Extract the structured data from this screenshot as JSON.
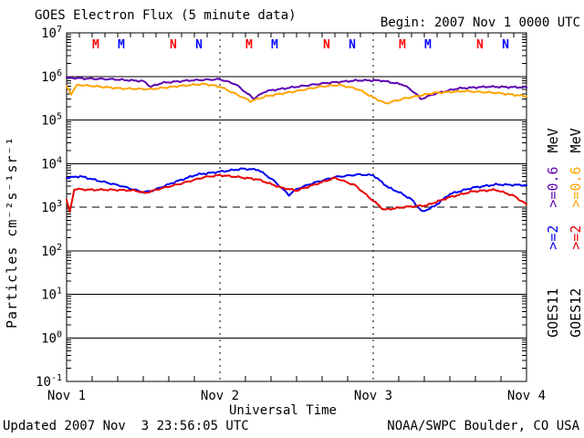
{
  "footer": {
    "updated": "Updated 2007 Nov  3 23:56:05 UTC",
    "credit": "NOAA/SWPC Boulder, CO USA"
  },
  "chart_data": {
    "type": "line",
    "title": "GOES Electron Flux (5 minute data)",
    "begin": "Begin: 2007 Nov 1 0000 UTC",
    "xlabel": "Universal Time",
    "ylabel": "Particles cm⁻²s⁻¹sr⁻¹",
    "x_axis": {
      "unit": "days since 2007 Nov 1 0000 UTC",
      "range_days": [
        0,
        3
      ],
      "tick_labels": [
        "Nov 1",
        "Nov 2",
        "Nov 3",
        "Nov 4"
      ]
    },
    "y_axis": {
      "scale": "log10",
      "exponent_range": [
        -1,
        7
      ],
      "tick_exponents": [
        7,
        6,
        5,
        4,
        3,
        2,
        1,
        0,
        -1
      ]
    },
    "grid": {
      "solid_decades": [
        6,
        5,
        4,
        2,
        1,
        0
      ],
      "dashed_threshold_value": 1000,
      "dotted_day_lines": [
        1,
        2
      ]
    },
    "series": [
      {
        "key": "g11-e06",
        "name": "GOES11 >=0.6 MeV",
        "satellite": "GOES11",
        "energy": ">=0.6 MeV",
        "color": "#5E00B0",
        "points": [
          [
            0.0,
            940000.0
          ],
          [
            0.1,
            900000.0
          ],
          [
            0.3,
            860000.0
          ],
          [
            0.5,
            780000.0
          ],
          [
            0.55,
            580000.0
          ],
          [
            0.62,
            710000.0
          ],
          [
            0.8,
            810000.0
          ],
          [
            1.0,
            860000.0
          ],
          [
            1.1,
            670000.0
          ],
          [
            1.18,
            400000.0
          ],
          [
            1.22,
            310000.0
          ],
          [
            1.3,
            460000.0
          ],
          [
            1.5,
            580000.0
          ],
          [
            1.7,
            710000.0
          ],
          [
            1.9,
            810000.0
          ],
          [
            2.05,
            810000.0
          ],
          [
            2.2,
            640000.0
          ],
          [
            2.28,
            400000.0
          ],
          [
            2.31,
            300000.0
          ],
          [
            2.4,
            400000.0
          ],
          [
            2.55,
            530000.0
          ],
          [
            2.75,
            580000.0
          ],
          [
            3.0,
            560000.0
          ]
        ]
      },
      {
        "key": "g12-e06",
        "name": "GOES12 >=0.6 MeV",
        "satellite": "GOES12",
        "energy": ">=0.6 MeV",
        "color": "#FFA500",
        "points": [
          [
            0.0,
            580000.0
          ],
          [
            0.03,
            400000.0
          ],
          [
            0.07,
            640000.0
          ],
          [
            0.15,
            610000.0
          ],
          [
            0.35,
            530000.0
          ],
          [
            0.55,
            510000.0
          ],
          [
            0.75,
            610000.0
          ],
          [
            0.9,
            670000.0
          ],
          [
            1.0,
            580000.0
          ],
          [
            1.1,
            400000.0
          ],
          [
            1.2,
            270000.0
          ],
          [
            1.3,
            350000.0
          ],
          [
            1.5,
            460000.0
          ],
          [
            1.65,
            580000.0
          ],
          [
            1.78,
            640000.0
          ],
          [
            1.9,
            510000.0
          ],
          [
            2.0,
            330000.0
          ],
          [
            2.08,
            240000.0
          ],
          [
            2.2,
            310000.0
          ],
          [
            2.4,
            420000.0
          ],
          [
            2.6,
            460000.0
          ],
          [
            2.8,
            420000.0
          ],
          [
            3.0,
            350000.0
          ]
        ]
      },
      {
        "key": "g11-e2",
        "name": "GOES11 >=2 MeV",
        "satellite": "GOES11",
        "energy": ">=2 MeV",
        "color": "#0000F0",
        "points": [
          [
            0.0,
            4700.0
          ],
          [
            0.09,
            5100.0
          ],
          [
            0.2,
            4100.0
          ],
          [
            0.35,
            3100.0
          ],
          [
            0.5,
            2200.0
          ],
          [
            0.56,
            2400.0
          ],
          [
            0.7,
            3700.0
          ],
          [
            0.85,
            5600.0
          ],
          [
            1.0,
            6500.0
          ],
          [
            1.15,
            7600.0
          ],
          [
            1.25,
            7200.0
          ],
          [
            1.35,
            4100.0
          ],
          [
            1.45,
            1900.0
          ],
          [
            1.5,
            2600.0
          ],
          [
            1.6,
            3500.0
          ],
          [
            1.75,
            4900.0
          ],
          [
            1.9,
            5600.0
          ],
          [
            2.0,
            5400.0
          ],
          [
            2.1,
            2800.0
          ],
          [
            2.18,
            2100.0
          ],
          [
            2.25,
            1500.0
          ],
          [
            2.32,
            780.0
          ],
          [
            2.4,
            1050.0
          ],
          [
            2.5,
            2000.0
          ],
          [
            2.65,
            2800.0
          ],
          [
            2.8,
            3300.0
          ],
          [
            3.0,
            3200.0
          ]
        ]
      },
      {
        "key": "g12-e2",
        "name": "GOES12 >=2 MeV",
        "satellite": "GOES12",
        "energy": ">=2 MeV",
        "color": "#E80000",
        "points": [
          [
            0.0,
            1500.0
          ],
          [
            0.02,
            750.0
          ],
          [
            0.05,
            2600.0
          ],
          [
            0.15,
            2500.0
          ],
          [
            0.3,
            2500.0
          ],
          [
            0.45,
            2400.0
          ],
          [
            0.51,
            2100.0
          ],
          [
            0.6,
            2600.0
          ],
          [
            0.75,
            3500.0
          ],
          [
            0.9,
            4900.0
          ],
          [
            1.0,
            5400.0
          ],
          [
            1.12,
            4900.0
          ],
          [
            1.25,
            4300.0
          ],
          [
            1.4,
            2800.0
          ],
          [
            1.5,
            2400.0
          ],
          [
            1.62,
            3300.0
          ],
          [
            1.75,
            4700.0
          ],
          [
            1.88,
            3200.0
          ],
          [
            2.0,
            1400.0
          ],
          [
            2.07,
            870.0
          ],
          [
            2.2,
            1000.0
          ],
          [
            2.35,
            1100.0
          ],
          [
            2.5,
            1700.0
          ],
          [
            2.65,
            2300.0
          ],
          [
            2.8,
            2500.0
          ],
          [
            2.92,
            1800.0
          ],
          [
            3.0,
            1150.0
          ]
        ]
      }
    ],
    "event_markers": {
      "description": "satellite local midnight (M) / noon (N) markers along top of plot",
      "items": [
        {
          "t": 0.19,
          "label": "M",
          "color": "#FF0000"
        },
        {
          "t": 0.357,
          "label": "M",
          "color": "#0000FF"
        },
        {
          "t": 0.696,
          "label": "N",
          "color": "#FF0000"
        },
        {
          "t": 0.863,
          "label": "N",
          "color": "#0000FF"
        },
        {
          "t": 1.19,
          "label": "M",
          "color": "#FF0000"
        },
        {
          "t": 1.357,
          "label": "M",
          "color": "#0000FF"
        },
        {
          "t": 1.696,
          "label": "N",
          "color": "#FF0000"
        },
        {
          "t": 1.863,
          "label": "N",
          "color": "#0000FF"
        },
        {
          "t": 2.19,
          "label": "M",
          "color": "#FF0000"
        },
        {
          "t": 2.357,
          "label": "M",
          "color": "#0000FF"
        },
        {
          "t": 2.696,
          "label": "N",
          "color": "#FF0000"
        },
        {
          "t": 2.863,
          "label": "N",
          "color": "#0000FF"
        }
      ]
    },
    "legend": {
      "columns": [
        {
          "satellite": "GOES11",
          "ge2_label": ">=2",
          "ge2_color": "#0000F0",
          "ge06_label": ">=0.6",
          "ge06_color": "#5E00B0",
          "mev_label": "MeV"
        },
        {
          "satellite": "GOES12",
          "ge2_label": ">=2",
          "ge2_color": "#E80000",
          "ge06_label": ">=0.6",
          "ge06_color": "#FFA500",
          "mev_label": "MeV"
        }
      ]
    }
  }
}
